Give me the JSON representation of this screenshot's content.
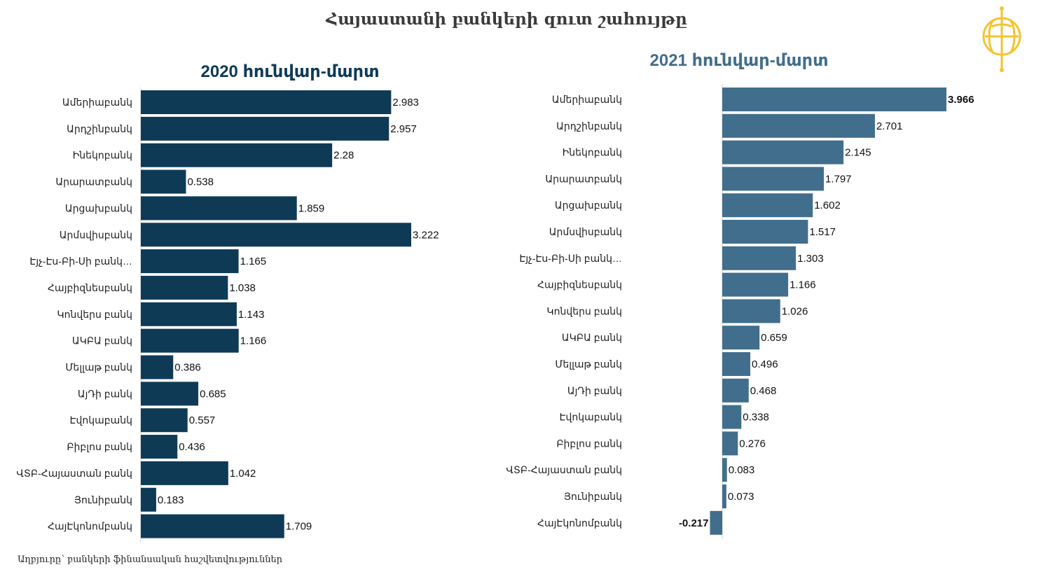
{
  "title": "Հայաստանի բանկերի զուտ շահույթը",
  "source": "Աղբյուրը՝ բանկերի ֆինանսական հաշվետվություններ",
  "colors": {
    "series_2020": "#0e3a56",
    "series_2021": "#416e8c",
    "logo": "#f2c530"
  },
  "logo_icon": "globe-logo-icon",
  "chart_data": [
    {
      "type": "bar",
      "orientation": "horizontal",
      "title": "2020 հունվար-մարտ",
      "categories": [
        "Ամերիաբանկ",
        "Արդշինբանկ",
        "Ինեկոբանկ",
        "Արարատբանկ",
        "Արցախբանկ",
        "Արմսվիսբանկ",
        "Էյչ-Էս-Բի-Սի բանկ…",
        "Հայբիզնեսբանկ",
        "Կոնվերս բանկ",
        "ԱԿԲԱ բանկ",
        "Մելլաթ բանկ",
        "ԱյԴի բանկ",
        "Էվոկաբանկ",
        "Բիբլոս բանկ",
        "ՎՏԲ-Հայաստան բանկ",
        "Յունիբանկ",
        "ՀայԷկոնոմբանկ"
      ],
      "values": [
        2.983,
        2.957,
        2.28,
        0.538,
        1.859,
        3.222,
        1.165,
        1.038,
        1.143,
        1.166,
        0.386,
        0.685,
        0.557,
        0.436,
        1.042,
        0.183,
        1.709
      ],
      "labels": [
        "2.983",
        "2.957",
        "2.28",
        "0.538",
        "1.859",
        "3.222",
        "1.165",
        "1.038",
        "1.143",
        "1.166",
        "0.386",
        "0.685",
        "0.557",
        "0.436",
        "1.042",
        "0.183",
        "1.709"
      ],
      "color": "#0e3a56",
      "title_color": "#0e3a56",
      "label_weight": "normal",
      "xlim": [
        0,
        3.222
      ]
    },
    {
      "type": "bar",
      "orientation": "horizontal",
      "title": "2021 հունվար-մարտ",
      "categories": [
        "Ամերիաբանկ",
        "Արդշինբանկ",
        "Ինեկոբանկ",
        "Արարատբանկ",
        "Արցախբանկ",
        "Արմսվիսբանկ",
        "Էյչ-Էս-Բի-Սի բանկ…",
        "Հայբիզնեսբանկ",
        "Կոնվերս բանկ",
        "ԱԿԲԱ բանկ",
        "Մելլաթ բանկ",
        "ԱյԴի բանկ",
        "Էվոկաբանկ",
        "Բիբլոս բանկ",
        "ՎՏԲ-Հայաստան բանկ",
        "Յունիբանկ",
        "ՀայԷկոնոմբանկ"
      ],
      "values": [
        3.966,
        2.701,
        2.145,
        1.797,
        1.602,
        1.517,
        1.303,
        1.166,
        1.026,
        0.659,
        0.496,
        0.468,
        0.338,
        0.276,
        0.083,
        0.073,
        -0.217
      ],
      "labels": [
        "3.966",
        "2.701",
        "2.145",
        "1.797",
        "1.602",
        "1.517",
        "1.303",
        "1.166",
        "1.026",
        "0.659",
        "0.496",
        "0.468",
        "0.338",
        "0.276",
        "0.083",
        "0.073",
        "-0.217"
      ],
      "color": "#416e8c",
      "title_color": "#416e8c",
      "label_weight": "mixed",
      "xlim": [
        -0.217,
        3.966
      ]
    }
  ]
}
